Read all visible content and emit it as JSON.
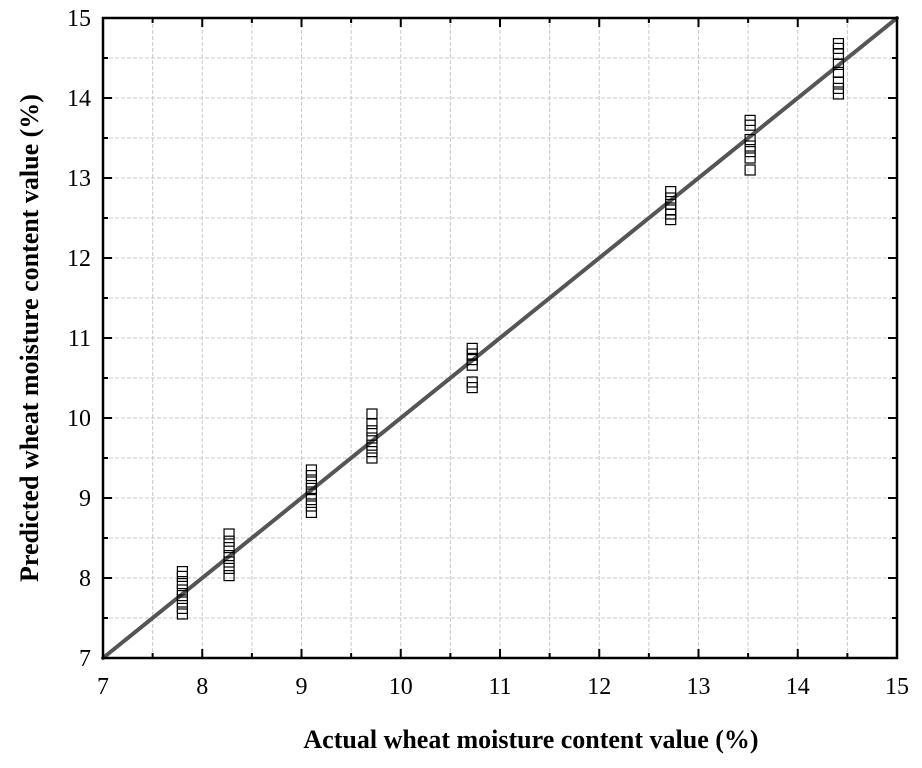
{
  "chart_data": {
    "type": "scatter",
    "title": "",
    "xlabel": "Actual wheat moisture content value (%)",
    "ylabel": "Predicted wheat moisture content value (%)",
    "xlim": [
      7,
      15
    ],
    "ylim": [
      7,
      15
    ],
    "xticks": [
      7,
      8,
      9,
      10,
      11,
      12,
      13,
      14,
      15
    ],
    "yticks": [
      7,
      8,
      9,
      10,
      11,
      12,
      13,
      14,
      15
    ],
    "grid": true,
    "legend": "none",
    "marker": "open-square",
    "series": [
      {
        "points": [
          [
            7.8,
            7.55
          ],
          [
            7.8,
            7.62
          ],
          [
            7.8,
            7.7
          ],
          [
            7.8,
            7.78
          ],
          [
            7.8,
            7.85
          ],
          [
            7.8,
            7.93
          ],
          [
            7.8,
            8.02
          ],
          [
            7.8,
            8.08
          ],
          [
            8.27,
            8.03
          ],
          [
            8.27,
            8.12
          ],
          [
            8.27,
            8.2
          ],
          [
            8.27,
            8.28
          ],
          [
            8.27,
            8.38
          ],
          [
            8.27,
            8.46
          ],
          [
            8.27,
            8.55
          ],
          [
            9.1,
            8.82
          ],
          [
            9.1,
            8.9
          ],
          [
            9.1,
            8.98
          ],
          [
            9.1,
            9.05
          ],
          [
            9.1,
            9.12
          ],
          [
            9.1,
            9.2
          ],
          [
            9.1,
            9.28
          ],
          [
            9.1,
            9.35
          ],
          [
            9.71,
            9.5
          ],
          [
            9.71,
            9.58
          ],
          [
            9.71,
            9.66
          ],
          [
            9.71,
            9.75
          ],
          [
            9.71,
            9.84
          ],
          [
            9.71,
            9.93
          ],
          [
            9.71,
            10.05
          ],
          [
            10.72,
            10.38
          ],
          [
            10.72,
            10.45
          ],
          [
            10.72,
            10.66
          ],
          [
            10.72,
            10.73
          ],
          [
            10.72,
            10.8
          ],
          [
            10.72,
            10.87
          ],
          [
            12.72,
            12.48
          ],
          [
            12.72,
            12.55
          ],
          [
            12.72,
            12.6
          ],
          [
            12.72,
            12.67
          ],
          [
            12.72,
            12.75
          ],
          [
            12.72,
            12.83
          ],
          [
            13.52,
            13.1
          ],
          [
            13.52,
            13.25
          ],
          [
            13.52,
            13.33
          ],
          [
            13.52,
            13.4
          ],
          [
            13.52,
            13.48
          ],
          [
            13.52,
            13.66
          ],
          [
            13.52,
            13.72
          ],
          [
            14.41,
            14.05
          ],
          [
            14.41,
            14.12
          ],
          [
            14.41,
            14.2
          ],
          [
            14.41,
            14.32
          ],
          [
            14.41,
            14.42
          ],
          [
            14.41,
            14.55
          ],
          [
            14.41,
            14.62
          ],
          [
            14.41,
            14.68
          ]
        ]
      }
    ],
    "reference_line": {
      "from": [
        7,
        7
      ],
      "to": [
        15,
        15
      ],
      "color": "#555555"
    },
    "colors": {
      "axis": "#000000",
      "grid": "#c8c8c8",
      "marker": "#000000",
      "line": "#555555"
    }
  }
}
